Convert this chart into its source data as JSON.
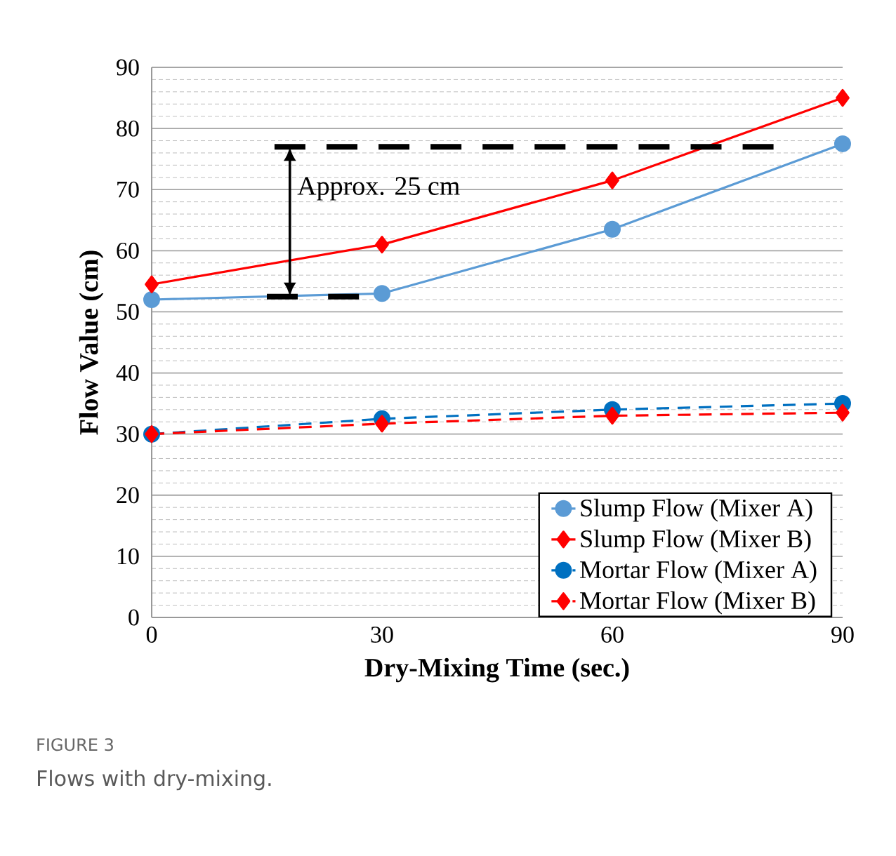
{
  "chart_data": {
    "type": "line",
    "xlabel": "Dry-Mixing Time (sec.)",
    "ylabel": "Flow Value (cm)",
    "x": [
      0,
      30,
      60,
      90
    ],
    "series": [
      {
        "name": "Slump Flow (Mixer A)",
        "color": "#5b9bd5",
        "values": [
          52,
          53,
          63.5,
          77.5
        ],
        "marker": "circle",
        "line_style": "solid"
      },
      {
        "name": "Slump Flow (Mixer B)",
        "color": "#ff0000",
        "values": [
          54.5,
          61,
          71.5,
          85
        ],
        "marker": "diamond",
        "line_style": "solid"
      },
      {
        "name": "Mortar Flow (Mixer A)",
        "color": "#0070c0",
        "values": [
          30,
          32.5,
          34,
          35
        ],
        "marker": "circle",
        "line_style": "dashed"
      },
      {
        "name": "Mortar Flow (Mixer B)",
        "color": "#ff0000",
        "values": [
          30,
          31.7,
          33,
          33.5
        ],
        "marker": "diamond",
        "line_style": "dashed"
      },
      {
        "color": "#000000",
        "x": [
          16,
          81
        ],
        "values": [
          77,
          77
        ],
        "marker": "none",
        "line_style": "dashed"
      },
      {
        "color": "#000000",
        "x": [
          15,
          27
        ],
        "values": [
          52.5,
          52.5
        ],
        "marker": "none",
        "line_style": "dashed"
      }
    ],
    "xlim": [
      0,
      90
    ],
    "xticks": [
      0,
      30,
      60,
      90
    ],
    "ylim": [
      0,
      90
    ],
    "yticks": [
      0,
      10,
      20,
      30,
      40,
      50,
      60,
      70,
      80,
      90
    ],
    "grid": "y",
    "legend": "bottom right",
    "annotations": [
      "Approx. 25 cm",
      "FIGURE 3",
      "Flows with dry-mixing."
    ]
  }
}
